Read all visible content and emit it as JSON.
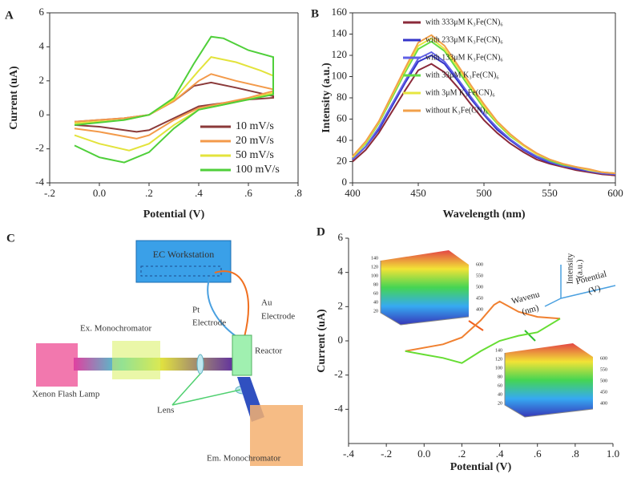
{
  "chart_data": [
    {
      "type": "line",
      "panel": "A",
      "xlabel": "Potential (V)",
      "ylabel": "Current (uA)",
      "xlim": [
        -0.2,
        0.8
      ],
      "xticks": [
        {
          "value": -0.2,
          "label": "-.2"
        },
        {
          "value": 0,
          "label": "0.0"
        },
        {
          "value": 0.2,
          "label": ".2"
        },
        {
          "value": 0.4,
          "label": ".4"
        },
        {
          "value": 0.6,
          "label": ".6"
        },
        {
          "value": 0.8,
          "label": ".8"
        }
      ],
      "ylim": [
        -4,
        6
      ],
      "yticks": [
        -4,
        -2,
        0,
        2,
        4,
        6
      ],
      "legend": "lower right",
      "series": [
        {
          "name": "10 mV/s",
          "color": "#8b3a3a",
          "x": [
            -0.1,
            0.1,
            0.2,
            0.3,
            0.38,
            0.45,
            0.55,
            0.7,
            0.7,
            0.6,
            0.5,
            0.4,
            0.3,
            0.2,
            0.15,
            0.0,
            -0.1
          ],
          "values": [
            -0.4,
            -0.2,
            0,
            0.8,
            1.7,
            1.9,
            1.6,
            1.1,
            1.0,
            0.9,
            0.7,
            0.5,
            -0.2,
            -0.9,
            -1.0,
            -0.7,
            -0.6
          ]
        },
        {
          "name": "20 mV/s",
          "color": "#f39a4a",
          "x": [
            -0.1,
            0.1,
            0.2,
            0.3,
            0.4,
            0.45,
            0.55,
            0.7,
            0.7,
            0.6,
            0.5,
            0.4,
            0.3,
            0.2,
            0.15,
            0.0,
            -0.1
          ],
          "values": [
            -0.4,
            -0.2,
            0,
            0.8,
            2.0,
            2.4,
            2.0,
            1.5,
            1.4,
            1.0,
            0.7,
            0.4,
            -0.3,
            -1.2,
            -1.4,
            -1.0,
            -0.8
          ]
        },
        {
          "name": "50 mV/s",
          "color": "#e3e33c",
          "x": [
            -0.1,
            0.1,
            0.2,
            0.3,
            0.4,
            0.45,
            0.55,
            0.65,
            0.7,
            0.7,
            0.6,
            0.5,
            0.4,
            0.3,
            0.2,
            0.12,
            0.0,
            -0.1
          ],
          "values": [
            -0.5,
            -0.3,
            0,
            0.9,
            2.6,
            3.4,
            3.1,
            2.6,
            2.3,
            1.3,
            0.9,
            0.6,
            0.3,
            -0.6,
            -1.7,
            -2.1,
            -1.7,
            -1.2
          ]
        },
        {
          "name": "100 mV/s",
          "color": "#4fcf3a",
          "x": [
            -0.1,
            0.1,
            0.2,
            0.3,
            0.38,
            0.45,
            0.5,
            0.6,
            0.7,
            0.7,
            0.6,
            0.5,
            0.4,
            0.3,
            0.2,
            0.1,
            0.0,
            -0.1
          ],
          "values": [
            -0.6,
            -0.3,
            0,
            1.0,
            3.0,
            4.6,
            4.5,
            3.8,
            3.4,
            1.2,
            0.9,
            0.6,
            0.3,
            -0.8,
            -2.2,
            -2.8,
            -2.5,
            -1.8
          ]
        }
      ]
    },
    {
      "type": "line",
      "panel": "B",
      "xlabel": "Wavelength (nm)",
      "ylabel": "Intensity (a.u.)",
      "xlim": [
        400,
        600
      ],
      "xticks": [
        400,
        450,
        500,
        550,
        600
      ],
      "ylim": [
        0,
        160
      ],
      "yticks": [
        0,
        20,
        40,
        60,
        80,
        100,
        120,
        140,
        160
      ],
      "legend": "upper right",
      "x": [
        400,
        410,
        420,
        430,
        440,
        450,
        460,
        470,
        480,
        490,
        500,
        510,
        520,
        530,
        540,
        550,
        560,
        570,
        580,
        590,
        600
      ],
      "series": [
        {
          "name": "with 333μM K₃Fe(CN)₆",
          "color": "#8b2a3a",
          "values": [
            20,
            31,
            47,
            67,
            87,
            106,
            112,
            104,
            90,
            74,
            59,
            47,
            37,
            29,
            22,
            18,
            15,
            12,
            10,
            8,
            7
          ]
        },
        {
          "name": "with 233μM K₃Fe(CN)₆",
          "color": "#3434c8",
          "values": [
            22,
            34,
            50,
            72,
            94,
            114,
            120,
            112,
            96,
            79,
            64,
            50,
            40,
            31,
            24,
            19,
            16,
            13,
            11,
            9,
            8
          ]
        },
        {
          "name": "with 133μM K₃Fe(CN)₆",
          "color": "#6060e6",
          "values": [
            22,
            34,
            52,
            74,
            96,
            117,
            123,
            114,
            98,
            81,
            65,
            52,
            41,
            32,
            25,
            20,
            16,
            14,
            11,
            9,
            8
          ]
        },
        {
          "name": "with 33μM K₃Fe(CN)₆",
          "color": "#66dd44",
          "values": [
            24,
            37,
            56,
            80,
            104,
            126,
            133,
            124,
            106,
            88,
            70,
            56,
            44,
            35,
            27,
            21,
            17,
            15,
            12,
            10,
            9
          ]
        },
        {
          "name": "with 3μM K₃Fe(CN)₆",
          "color": "#e6e640",
          "values": [
            24,
            38,
            57,
            82,
            106,
            129,
            136,
            126,
            109,
            90,
            72,
            57,
            45,
            35,
            27,
            22,
            18,
            15,
            12,
            10,
            9
          ]
        },
        {
          "name": "without K₃Fe(CN)₆",
          "color": "#f2a04a",
          "values": [
            25,
            39,
            58,
            83,
            108,
            132,
            139,
            129,
            111,
            92,
            74,
            58,
            46,
            36,
            28,
            22,
            18,
            15,
            13,
            10,
            9
          ]
        }
      ]
    },
    {
      "type": "line",
      "panel": "D",
      "xlabel": "Potential (V)",
      "ylabel": "Current (uA)",
      "xlim": [
        -0.4,
        1.0
      ],
      "xticks": [
        {
          "value": -0.4,
          "label": "-.4"
        },
        {
          "value": -0.2,
          "label": "-.2"
        },
        {
          "value": 0,
          "label": "0.0"
        },
        {
          "value": 0.2,
          "label": ".2"
        },
        {
          "value": 0.4,
          "label": ".4"
        },
        {
          "value": 0.6,
          "label": ".6"
        },
        {
          "value": 0.8,
          "label": ".8"
        },
        {
          "value": 1.0,
          "label": "1.0"
        }
      ],
      "ylim": [
        -6,
        6
      ],
      "yticks": [
        -4,
        -2,
        0,
        2,
        4,
        6
      ],
      "annotations": [
        "Intensity",
        "(a.u.)",
        "Potential",
        "(V)",
        "Wavenu",
        "(nm)"
      ],
      "insets": [
        {
          "yticks": [
            "140",
            "120",
            "100",
            "80",
            "60",
            "40",
            "20"
          ],
          "zticks": [
            "600",
            "550",
            "500",
            "450",
            "400"
          ]
        },
        {
          "yticks": [
            "140",
            "120",
            "100",
            "80",
            "60",
            "40",
            "20"
          ],
          "zticks": [
            "600",
            "550",
            "500",
            "450",
            "400"
          ]
        }
      ],
      "series": [
        {
          "color": "#f08030",
          "x": [
            -0.1,
            0.1,
            0.2,
            0.3,
            0.37,
            0.4,
            0.5,
            0.6,
            0.72
          ],
          "values": [
            -0.6,
            -0.2,
            0.2,
            1.2,
            2.1,
            2.3,
            1.7,
            1.4,
            1.3
          ]
        },
        {
          "color": "#66dd33",
          "x": [
            0.72,
            0.6,
            0.5,
            0.4,
            0.3,
            0.2,
            0.1,
            0.0,
            -0.1
          ],
          "values": [
            1.3,
            0.5,
            0.3,
            0,
            -0.6,
            -1.3,
            -1.0,
            -0.8,
            -0.6
          ]
        }
      ]
    }
  ],
  "diagram": {
    "panel": "C",
    "labels": [
      "EC Workstation",
      "Pt",
      "Electrode",
      "Au",
      "Electrode",
      "Ex. Monochromator",
      "Reactor",
      "Xenon Flash Lamp",
      "Lens",
      "Em. Monochromator"
    ]
  }
}
